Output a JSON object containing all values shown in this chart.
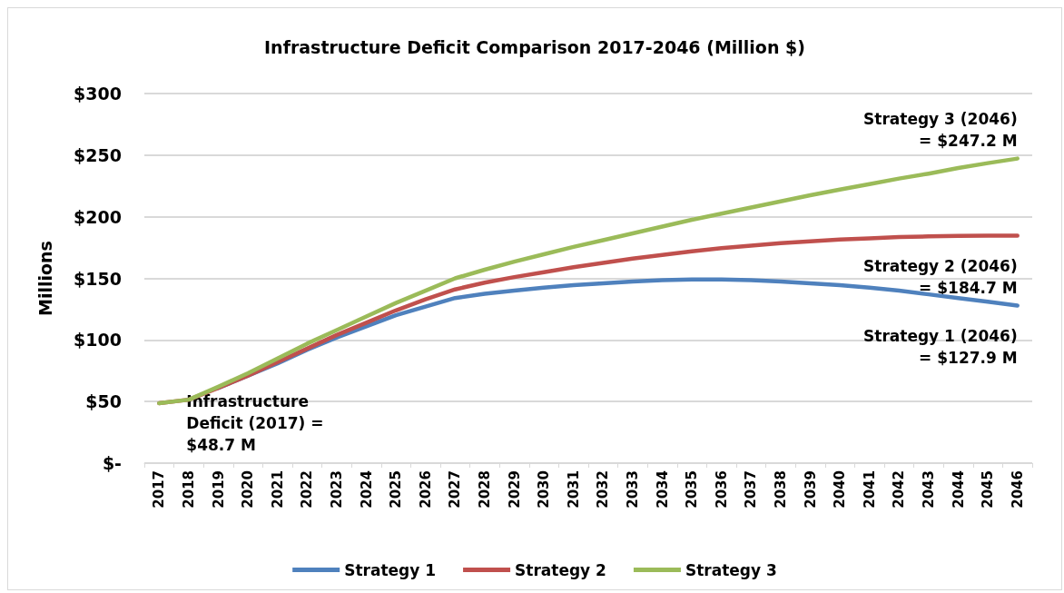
{
  "chart_data": {
    "type": "line",
    "title": "Infrastructure Deficit Comparison 2017-2046 (Million $)",
    "ylabel": "Millions",
    "categories": [
      "2017",
      "2018",
      "2019",
      "2020",
      "2021",
      "2022",
      "2023",
      "2024",
      "2025",
      "2026",
      "2027",
      "2028",
      "2029",
      "2030",
      "2031",
      "2032",
      "2033",
      "2034",
      "2035",
      "2036",
      "2037",
      "2038",
      "2039",
      "2040",
      "2041",
      "2042",
      "2043",
      "2044",
      "2045",
      "2046"
    ],
    "series": [
      {
        "name": "Strategy 1",
        "color": "#4f81bd",
        "values": [
          null,
          null,
          61,
          71,
          81,
          92,
          102,
          111,
          120,
          127,
          134,
          137.5,
          140,
          142.5,
          144.5,
          146,
          147.5,
          148.5,
          149,
          149,
          148.5,
          147.5,
          146,
          144.5,
          142.5,
          140,
          137,
          134,
          131,
          127.9
        ]
      },
      {
        "name": "Strategy 2",
        "color": "#c0504d",
        "values": [
          48.7,
          51.5,
          61,
          71,
          82,
          93,
          104,
          114,
          124,
          133,
          141,
          146.5,
          151,
          155,
          159,
          162.5,
          166,
          169,
          172,
          174.5,
          176.5,
          178.5,
          180,
          181.5,
          182.5,
          183.5,
          184,
          184.5,
          184.7,
          184.7
        ]
      },
      {
        "name": "Strategy 3",
        "color": "#9bbb59",
        "values": [
          48.7,
          51.5,
          62,
          73,
          85,
          97,
          108,
          119,
          130,
          140,
          150,
          157,
          163.5,
          169.5,
          175.5,
          181,
          186.5,
          192,
          197.5,
          202.5,
          207.5,
          212.5,
          217.5,
          222,
          226.5,
          231,
          235,
          239.5,
          243.5,
          247.2
        ]
      }
    ],
    "ylim": [
      0,
      300
    ],
    "yticks": [
      {
        "value": 0,
        "label": "$-"
      },
      {
        "value": 50,
        "label": "$50"
      },
      {
        "value": 100,
        "label": "$100"
      },
      {
        "value": 150,
        "label": "$150"
      },
      {
        "value": 200,
        "label": "$200"
      },
      {
        "value": 250,
        "label": "$250"
      },
      {
        "value": 300,
        "label": "$300"
      }
    ],
    "grid": "y",
    "legend": "bottom",
    "marker": "none",
    "line_style": "solid",
    "annotations": [
      {
        "text": "Infrastructure Deficit (2017) = $48.7 M",
        "x": "2017",
        "y": 48.7
      },
      {
        "text": "Strategy 3 (2046) = $247.2 M",
        "x": "2046",
        "y": 247.2
      },
      {
        "text": "Strategy 2 (2046) = $184.7 M",
        "x": "2046",
        "y": 184.7
      },
      {
        "text": "Strategy 1 (2046) = $127.9 M",
        "x": "2046",
        "y": 127.9
      }
    ]
  }
}
